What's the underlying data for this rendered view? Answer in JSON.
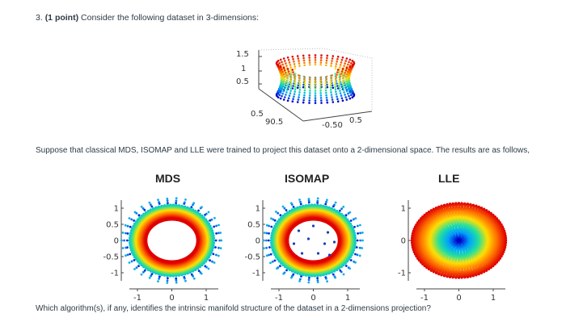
{
  "question": {
    "number": "3.",
    "points": "(1 point)",
    "prompt": "Consider the following dataset in 3-dimensions:",
    "middle_text": "Suppose that classical MDS, ISOMAP and LLE were trained to project this dataset onto a 2-dimensional space. The results are as follows,",
    "final_question": "Which algorithm(s), if any, identifies the intrinsic manifold structure of the dataset in a 2-dimensions projection?"
  },
  "figure_3d": {
    "z_ticks": [
      "1.5",
      "1",
      "0.5"
    ],
    "x_ticks": [
      "0.5",
      "0",
      "-0.5",
      "0",
      "0.5"
    ],
    "x_tick_raw": [
      "0.5",
      "90.5",
      "-0.50",
      "0.5"
    ]
  },
  "chart_data": [
    {
      "type": "scatter",
      "title": "MDS",
      "xticks": [
        "-1",
        "0",
        "1"
      ],
      "yticks": [
        "1",
        "0.5",
        "0",
        "-0.5",
        "-1"
      ],
      "shape": "ring",
      "colormap": [
        "#0000c8",
        "#00a0ff",
        "#20e0a0",
        "#ffe000",
        "#ff7000",
        "#e00000"
      ]
    },
    {
      "type": "scatter",
      "title": "ISOMAP",
      "xticks": [
        "-1",
        "0",
        "1"
      ],
      "yticks": [
        "1",
        "0.5",
        "0",
        "-0.5",
        "-1"
      ],
      "shape": "ring",
      "colormap": [
        "#0000c8",
        "#00a0ff",
        "#20e0a0",
        "#ffe000",
        "#ff7000",
        "#e00000"
      ]
    },
    {
      "type": "scatter",
      "title": "LLE",
      "xticks": [
        "-1",
        "0",
        "1"
      ],
      "yticks": [
        "1",
        "0",
        "-1"
      ],
      "shape": "filled-disk",
      "colormap": [
        "#0000c8",
        "#00a0ff",
        "#20e0a0",
        "#ffe000",
        "#ff7000",
        "#e00000"
      ]
    }
  ]
}
